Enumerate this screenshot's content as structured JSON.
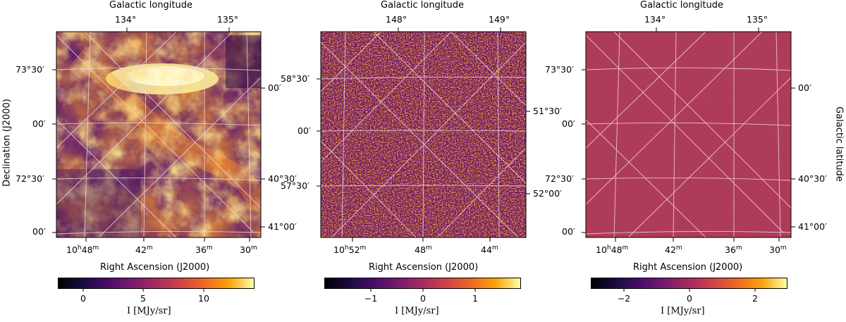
{
  "axes": {
    "top_label": "Galactic longitude",
    "bottom_label": "Right Ascension (J2000)",
    "left_label": "Declination (J2000)",
    "right_label": "Galactic latitude"
  },
  "panels": [
    {
      "top_ticks": [
        "134°",
        "135°"
      ],
      "left_ticks": [
        "73°30′",
        "00′",
        "72°30′",
        "00′"
      ],
      "right_ticks": [
        "00′",
        "40°30′",
        "41°00′"
      ],
      "bottom_ticks": [
        "10h48m",
        "42m",
        "36m",
        "30m"
      ],
      "colorbar": {
        "label": "I [MJy/sr]",
        "ticks": [
          "0",
          "5",
          "10"
        ],
        "range": [
          -2,
          14
        ]
      },
      "texture": "nebula"
    },
    {
      "top_ticks": [
        "148°",
        "149°"
      ],
      "left_ticks": [
        "58°30′",
        "00′",
        "57°30′"
      ],
      "right_ticks": [
        "51°30′",
        "52°00′"
      ],
      "bottom_ticks": [
        "10h52m",
        "48m",
        "44m"
      ],
      "colorbar": {
        "label": "I [MJy/sr]",
        "ticks": [
          "−1",
          "0",
          "1"
        ],
        "range": [
          -1.9,
          1.9
        ]
      },
      "texture": "noise"
    },
    {
      "top_ticks": [
        "134°",
        "135°"
      ],
      "left_ticks": [
        "73°30′",
        "00′",
        "72°30′",
        "00′"
      ],
      "right_ticks": [
        "00′",
        "40°30′",
        "41°00′"
      ],
      "bottom_ticks": [
        "10h48m",
        "42m",
        "36m",
        "30m"
      ],
      "colorbar": {
        "label": "I [MJy/sr]",
        "ticks": [
          "−2",
          "0",
          "2"
        ],
        "range": [
          -3,
          3
        ]
      },
      "texture": "residual"
    }
  ]
}
